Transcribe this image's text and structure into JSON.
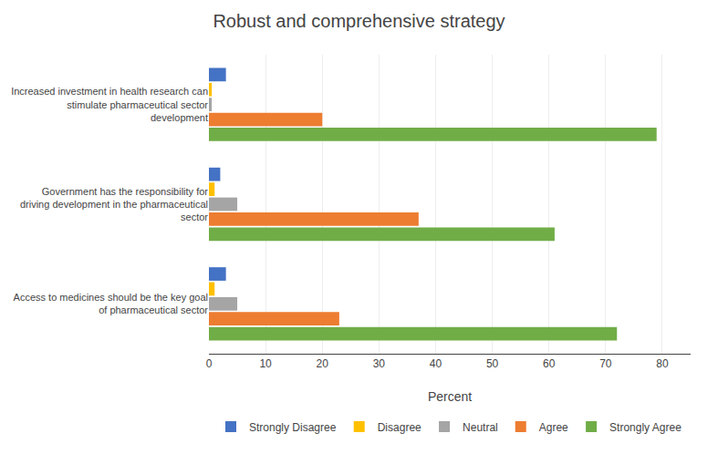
{
  "chart_data": {
    "type": "bar",
    "orientation": "horizontal",
    "title": "Robust and comprehensive strategy",
    "xlabel": "Percent",
    "categories": [
      "Increased investment in health research can\nstimulate pharmaceutical sector\ndevelopment",
      "Government has the responsibility for\ndriving development in the pharmaceutical\nsector",
      "Access to medicines should be the key goal\nof pharmaceutical sector"
    ],
    "series": [
      {
        "name": "Strongly Disagree",
        "color": "#4472C4",
        "values": [
          3,
          2,
          3
        ]
      },
      {
        "name": "Disagree",
        "color": "#FFC000",
        "values": [
          0.5,
          1,
          1
        ]
      },
      {
        "name": "Neutral",
        "color": "#A5A5A5",
        "values": [
          0.5,
          5,
          5
        ]
      },
      {
        "name": "Agree",
        "color": "#ED7D31",
        "values": [
          20,
          37,
          23
        ]
      },
      {
        "name": "Strongly Agree",
        "color": "#70AD47",
        "values": [
          79,
          61,
          72
        ]
      }
    ],
    "xlim": [
      0,
      85
    ],
    "xticks": [
      0,
      10,
      20,
      30,
      40,
      50,
      60,
      70,
      80
    ],
    "grid": true,
    "legend": "bottom"
  }
}
